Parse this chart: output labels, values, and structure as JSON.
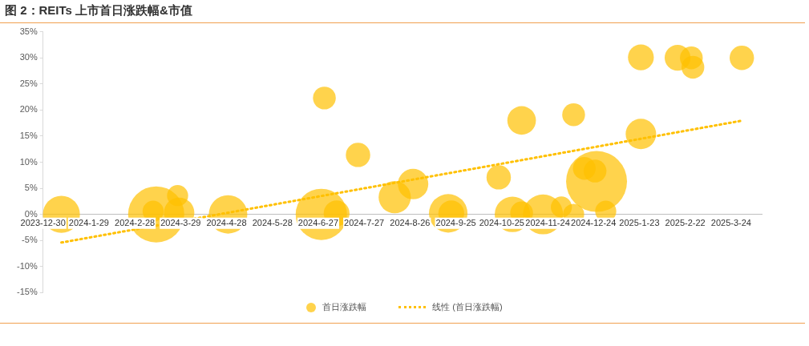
{
  "chart_data": {
    "type": "bubble",
    "title": "图 2：REITs 上市首日涨跌幅&市值",
    "xlim": [
      "2023-12-30",
      "2025-04-13"
    ],
    "xticks": [
      {
        "value": "2023-12-30",
        "label": "2023-12-30"
      },
      {
        "value": "2024-01-29",
        "label": "2024-1-29"
      },
      {
        "value": "2024-02-28",
        "label": "2024-2-28"
      },
      {
        "value": "2024-03-29",
        "label": "2024-3-29"
      },
      {
        "value": "2024-04-28",
        "label": "2024-4-28"
      },
      {
        "value": "2024-05-28",
        "label": "2024-5-28"
      },
      {
        "value": "2024-06-27",
        "label": "2024-6-27"
      },
      {
        "value": "2024-07-27",
        "label": "2024-7-27"
      },
      {
        "value": "2024-08-26",
        "label": "2024-8-26"
      },
      {
        "value": "2024-09-25",
        "label": "2024-9-25"
      },
      {
        "value": "2024-10-25",
        "label": "2024-10-25"
      },
      {
        "value": "2024-11-24",
        "label": "2024-11-24"
      },
      {
        "value": "2024-12-24",
        "label": "2024-12-24"
      },
      {
        "value": "2025-01-23",
        "label": "2025-1-23"
      },
      {
        "value": "2025-02-22",
        "label": "2025-2-22"
      },
      {
        "value": "2025-03-24",
        "label": "2025-3-24"
      }
    ],
    "ylim": [
      -15,
      35
    ],
    "yticks": [
      {
        "value": -15,
        "label": "-15%"
      },
      {
        "value": -10,
        "label": "-10%"
      },
      {
        "value": -5,
        "label": "-5%"
      },
      {
        "value": 0,
        "label": "0%"
      },
      {
        "value": 5,
        "label": "5%"
      },
      {
        "value": 10,
        "label": "10%"
      },
      {
        "value": 15,
        "label": "15%"
      },
      {
        "value": 20,
        "label": "20%"
      },
      {
        "value": 25,
        "label": "25%"
      },
      {
        "value": 30,
        "label": "30%"
      },
      {
        "value": 35,
        "label": "35%"
      }
    ],
    "grid": false,
    "legend": "bottom",
    "series": [
      {
        "name": "首日涨跌幅",
        "color": "#ffc000",
        "x": [
          "2024-01-11",
          "2024-03-13",
          "2024-03-11",
          "2024-03-27",
          "2024-03-28",
          "2024-04-29",
          "2024-07-01",
          "2024-06-29",
          "2024-07-09",
          "2024-07-23",
          "2024-08-16",
          "2024-08-28",
          "2024-09-20",
          "2024-09-22",
          "2024-10-23",
          "2024-11-07",
          "2024-11-01",
          "2024-11-07",
          "2024-11-21",
          "2024-12-03",
          "2024-12-11",
          "2024-12-11",
          "2024-12-26",
          "2024-12-18",
          "2024-12-25",
          "2025-01-01",
          "2025-01-24",
          "2025-01-24",
          "2025-02-17",
          "2025-02-26",
          "2025-02-27",
          "2025-03-31"
        ],
        "values": [
          0,
          0,
          0.6,
          3.6,
          0.3,
          0,
          22.3,
          0,
          0.2,
          11.4,
          3.3,
          5.8,
          0.2,
          0.2,
          7.1,
          18.0,
          0,
          0.3,
          0,
          1.4,
          0,
          19.1,
          6.3,
          8.8,
          8.3,
          0.6,
          30.1,
          15.4,
          30.0,
          30.0,
          28.2,
          30.0
        ],
        "sizes": [
          0.37,
          0.85,
          0.12,
          0.12,
          0.25,
          0.4,
          0.14,
          0.71,
          0.18,
          0.16,
          0.28,
          0.25,
          0.4,
          0.18,
          0.16,
          0.22,
          0.34,
          0.14,
          0.43,
          0.12,
          0.12,
          0.14,
          1,
          0.14,
          0.14,
          0.12,
          0.18,
          0.25,
          0.18,
          0.14,
          0.14,
          0.16
        ]
      },
      {
        "name": "线性 (首日涨跌幅)",
        "type": "line",
        "color": "#ffc000",
        "line_style": "dotted",
        "marker": "none",
        "x": [
          "2024-01-11",
          "2025-03-30"
        ],
        "values": [
          -5.4,
          17.9
        ]
      }
    ]
  }
}
